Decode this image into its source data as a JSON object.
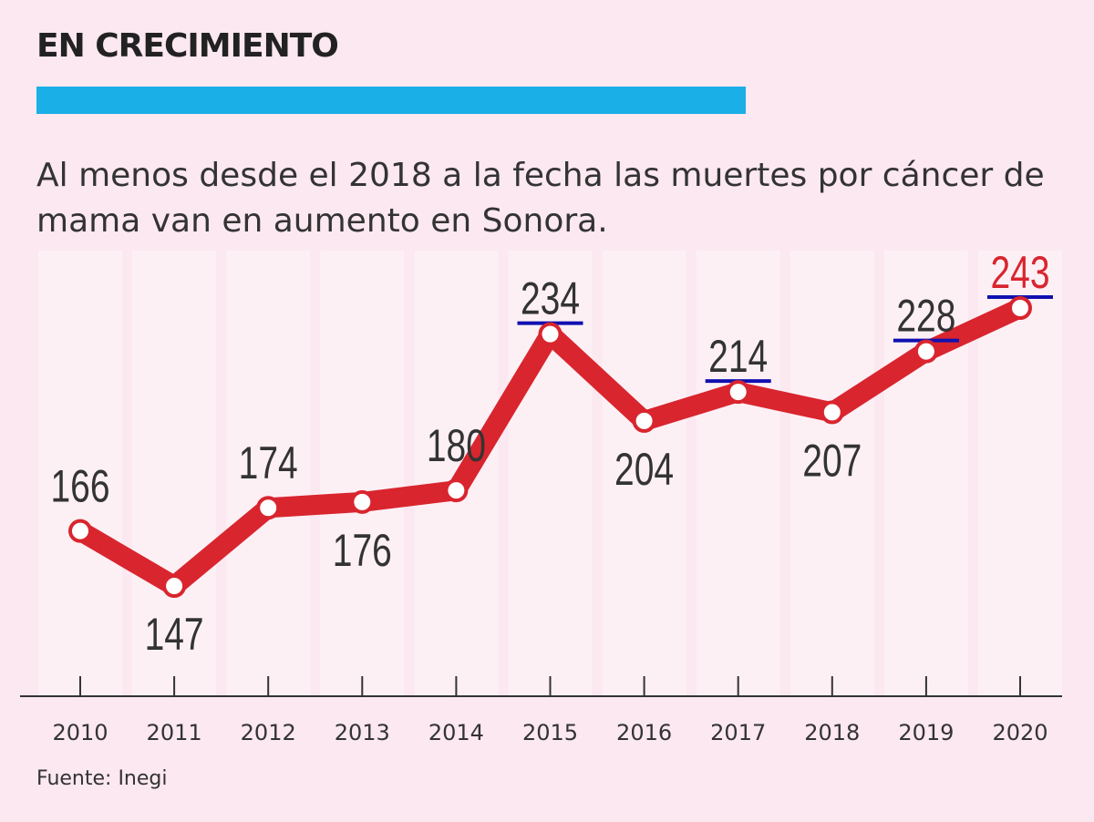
{
  "header": {
    "title": "EN CRECIMIENTO",
    "subtitle": "Al menos desde el 2018 a la fecha las muertes por cáncer de mama van en aumento en Sonora.",
    "source": "Fuente: Inegi"
  },
  "colors": {
    "background": "#fce8f0",
    "accent_bar": "#1aafe6",
    "line": "#d9252e",
    "underline": "#1010b0",
    "label": "#333333",
    "highlight_label": "#d9252e"
  },
  "chart_data": {
    "type": "line",
    "x": [
      "2010",
      "2011",
      "2012",
      "2013",
      "2014",
      "2015",
      "2016",
      "2017",
      "2018",
      "2019",
      "2020"
    ],
    "series": [
      {
        "values": [
          166,
          147,
          174,
          176,
          180,
          234,
          204,
          214,
          207,
          228,
          243
        ]
      }
    ],
    "data_labels": [
      "166",
      "147",
      "174",
      "176",
      "180",
      "234",
      "204",
      "214",
      "207",
      "228",
      "243"
    ],
    "highlighted_points": [
      "2015",
      "2017",
      "2019",
      "2020"
    ],
    "emphasized_point": "2020",
    "grid": false,
    "legend": "none"
  }
}
